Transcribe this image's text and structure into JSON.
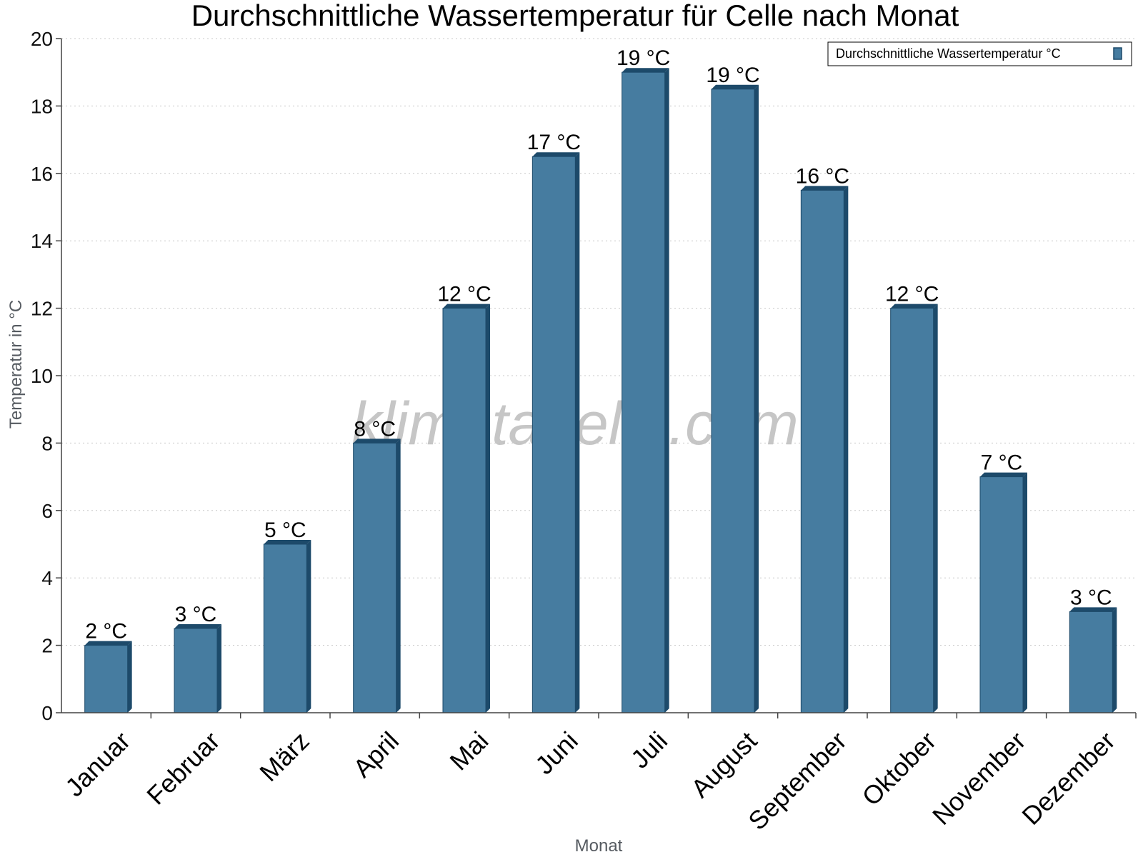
{
  "chart_data": {
    "type": "bar",
    "title": "Durchschnittliche Wassertemperatur für Celle nach Monat",
    "xlabel": "Monat",
    "ylabel": "Temperatur in °C",
    "ylim": [
      0,
      20
    ],
    "yticks": [
      0,
      2,
      4,
      6,
      8,
      10,
      12,
      14,
      16,
      18,
      20
    ],
    "grid": true,
    "legend_position": "top-right",
    "categories": [
      "Januar",
      "Februar",
      "März",
      "April",
      "Mai",
      "Juni",
      "Juli",
      "August",
      "September",
      "Oktober",
      "November",
      "Dezember"
    ],
    "series": [
      {
        "name": "Durchschnittliche Wassertemperatur °C",
        "color": "#467ca0",
        "values": [
          2,
          2.5,
          5,
          8,
          12,
          16.5,
          19,
          18.5,
          15.5,
          12,
          7,
          3
        ],
        "data_labels": [
          "2 °C",
          "3 °C",
          "5 °C",
          "8 °C",
          "12 °C",
          "17 °C",
          "19 °C",
          "19 °C",
          "16 °C",
          "12 °C",
          "7 °C",
          "3 °C"
        ]
      }
    ],
    "watermark": "klimatabelle.com"
  }
}
